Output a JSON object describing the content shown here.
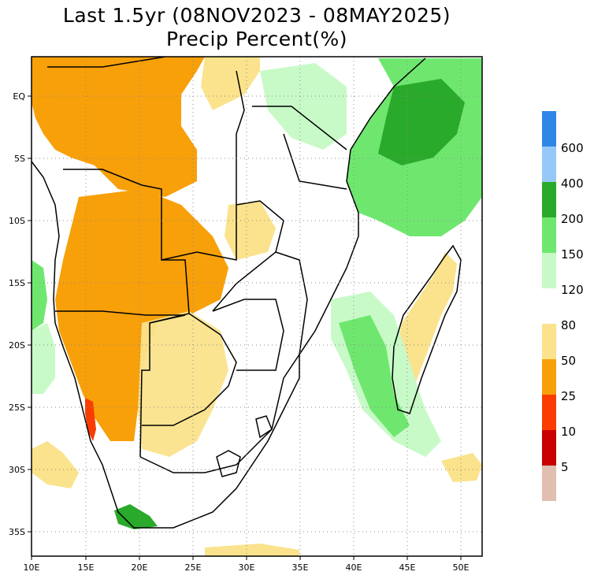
{
  "title": {
    "line1": "Last 1.5yr (08NOV2023 - 08MAY2025)",
    "line2": "Precip Percent(%)"
  },
  "map": {
    "lon_range": [
      10,
      52
    ],
    "lat_range": [
      -37,
      3.2
    ],
    "x_ticks": [
      "10E",
      "15E",
      "20E",
      "25E",
      "30E",
      "35E",
      "40E",
      "45E",
      "50E"
    ],
    "y_ticks": [
      "EQ",
      "5S",
      "10S",
      "15S",
      "20S",
      "25S",
      "30S",
      "35S"
    ],
    "grid": "dotted"
  },
  "colorbar": {
    "upper": {
      "labels": [
        "600",
        "400",
        "200",
        "150",
        "120"
      ],
      "colors": [
        "#2e86e6",
        "#96c8f8",
        "#2aaa2a",
        "#6fe76f",
        "#c8fac8"
      ]
    },
    "lower": {
      "labels": [
        "80",
        "50",
        "25",
        "10",
        "5"
      ],
      "colors": [
        "#fae38c",
        "#f8a00a",
        "#fa3c00",
        "#c80000",
        "#e0bfb0"
      ]
    }
  }
}
